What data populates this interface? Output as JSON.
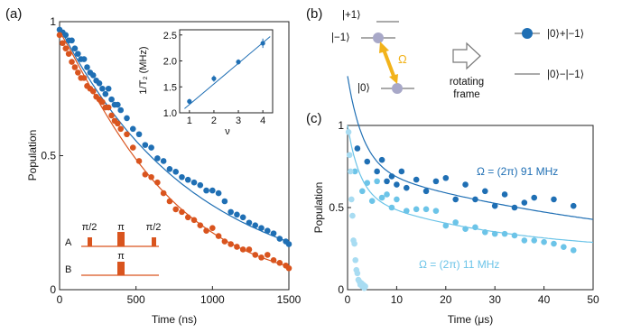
{
  "panels": {
    "a": {
      "label": "(a)",
      "xlabel": "Time (ns)",
      "ylabel": "Population",
      "xticks": [
        "0",
        "500",
        "1000",
        "1500"
      ],
      "yticks": [
        "0",
        "0.5",
        "1"
      ],
      "inset": {
        "xlabel": "ν",
        "ylabel": "1/T₂ (MHz)",
        "xticks": [
          "1",
          "2",
          "3",
          "4"
        ],
        "yticks": [
          "1.0",
          "1.5",
          "2.0",
          "2.5"
        ]
      },
      "sequence": {
        "row_a": "A",
        "row_b": "B",
        "pulse_a1": "π/2",
        "pulse_a2": "π",
        "pulse_a3": "π/2",
        "pulse_b": "π"
      }
    },
    "b": {
      "label": "(b)",
      "level_plus1": "|+1⟩",
      "level_minus1": "|−1⟩",
      "level_zero": "|0⟩",
      "omega": "Ω",
      "arrow_text_1": "rotating",
      "arrow_text_2": "frame",
      "dressed_plus": "|0⟩+|−1⟩",
      "dressed_minus": "|0⟩−|−1⟩"
    },
    "c": {
      "label": "(c)",
      "xlabel": "Time (μs)",
      "ylabel": "Population",
      "xticks": [
        "0",
        "10",
        "20",
        "30",
        "40",
        "50"
      ],
      "yticks": [
        "0",
        "0.5",
        "1"
      ],
      "label_91": "Ω = (2π) 91 MHz",
      "label_11": "Ω = (2π) 11 MHz"
    }
  },
  "colors": {
    "blue": "#1f6fb4",
    "orange": "#d9541e",
    "light_blue": "#6cc4e8",
    "pale_blue": "#a8dcf2",
    "gray": "#a8a8c8"
  },
  "chart_data": [
    {
      "type": "scatter",
      "panel": "a",
      "xlabel": "Time (ns)",
      "ylabel": "Population",
      "xlim": [
        0,
        1500
      ],
      "ylim": [
        0,
        1
      ],
      "series": [
        {
          "color": "blue",
          "x": [
            0,
            20,
            40,
            60,
            80,
            100,
            120,
            140,
            160,
            180,
            200,
            220,
            240,
            260,
            280,
            300,
            320,
            340,
            360,
            380,
            400,
            440,
            480,
            520,
            560,
            600,
            640,
            680,
            720,
            760,
            800,
            840,
            880,
            920,
            960,
            1000,
            1040,
            1080,
            1120,
            1160,
            1200,
            1240,
            1280,
            1320,
            1360,
            1400,
            1440,
            1480,
            1500
          ],
          "y": [
            0.97,
            0.96,
            0.95,
            0.93,
            0.93,
            0.9,
            0.88,
            0.86,
            0.86,
            0.83,
            0.81,
            0.8,
            0.78,
            0.77,
            0.75,
            0.73,
            0.75,
            0.71,
            0.69,
            0.69,
            0.67,
            0.64,
            0.6,
            0.58,
            0.54,
            0.53,
            0.49,
            0.48,
            0.45,
            0.44,
            0.42,
            0.41,
            0.4,
            0.39,
            0.37,
            0.37,
            0.36,
            0.33,
            0.29,
            0.28,
            0.27,
            0.25,
            0.24,
            0.23,
            0.22,
            0.21,
            0.19,
            0.18,
            0.17
          ]
        },
        {
          "color": "orange",
          "x": [
            0,
            20,
            40,
            60,
            80,
            100,
            120,
            140,
            160,
            180,
            200,
            220,
            240,
            260,
            280,
            300,
            320,
            340,
            360,
            380,
            400,
            440,
            480,
            520,
            560,
            600,
            640,
            680,
            720,
            760,
            800,
            840,
            880,
            920,
            960,
            1000,
            1040,
            1080,
            1120,
            1160,
            1200,
            1240,
            1280,
            1320,
            1360,
            1400,
            1440,
            1480,
            1500
          ],
          "y": [
            0.95,
            0.92,
            0.9,
            0.88,
            0.85,
            0.83,
            0.81,
            0.79,
            0.79,
            0.76,
            0.75,
            0.74,
            0.72,
            0.71,
            0.7,
            0.68,
            0.68,
            0.65,
            0.63,
            0.62,
            0.6,
            0.58,
            0.53,
            0.48,
            0.43,
            0.42,
            0.4,
            0.36,
            0.33,
            0.3,
            0.29,
            0.27,
            0.26,
            0.24,
            0.22,
            0.23,
            0.2,
            0.18,
            0.17,
            0.16,
            0.15,
            0.15,
            0.13,
            0.12,
            0.13,
            0.11,
            0.1,
            0.09,
            0.08
          ]
        }
      ]
    },
    {
      "type": "scatter",
      "panel": "a-inset",
      "xlabel": "ν",
      "ylabel": "1/T₂ (MHz)",
      "xlim": [
        0.6,
        4.4
      ],
      "ylim": [
        1.0,
        2.6
      ],
      "x": [
        1,
        2,
        3,
        4
      ],
      "y": [
        1.22,
        1.66,
        1.98,
        2.34
      ],
      "yerr": [
        0.05,
        0.06,
        0.05,
        0.09
      ]
    },
    {
      "type": "scatter",
      "panel": "c",
      "xlabel": "Time (μs)",
      "ylabel": "Population",
      "xlim": [
        0,
        50
      ],
      "ylim": [
        0,
        1
      ],
      "series": [
        {
          "color": "blue",
          "x": [
            2,
            4,
            6,
            7,
            8,
            9,
            10,
            11,
            12,
            14,
            16,
            18,
            20,
            22,
            24,
            26,
            28,
            30,
            32,
            34,
            36,
            38,
            42,
            46
          ],
          "y": [
            0.86,
            0.78,
            0.72,
            0.79,
            0.66,
            0.69,
            0.64,
            0.72,
            0.62,
            0.67,
            0.6,
            0.66,
            0.68,
            0.55,
            0.64,
            0.55,
            0.6,
            0.51,
            0.58,
            0.5,
            0.53,
            0.56,
            0.55,
            0.51
          ]
        },
        {
          "color": "light_blue",
          "x": [
            1.5,
            3,
            4,
            5,
            6,
            7,
            8,
            9,
            10,
            12,
            14,
            16,
            18,
            20,
            22,
            24,
            26,
            28,
            30,
            32,
            34,
            36,
            38,
            40,
            42,
            44,
            46
          ],
          "y": [
            0.72,
            0.6,
            0.65,
            0.54,
            0.66,
            0.56,
            0.58,
            0.5,
            0.55,
            0.48,
            0.49,
            0.49,
            0.48,
            0.39,
            0.41,
            0.37,
            0.38,
            0.35,
            0.34,
            0.34,
            0.33,
            0.3,
            0.3,
            0.29,
            0.28,
            0.26,
            0.24
          ]
        },
        {
          "color": "pale_blue",
          "x": [
            0.2,
            0.4,
            0.6,
            0.8,
            1.0,
            1.2,
            1.4,
            1.6,
            1.8,
            2.0,
            2.2,
            2.4,
            2.6,
            2.8,
            3.0,
            3.2,
            3.4,
            3.6
          ],
          "y": [
            0.96,
            0.82,
            0.72,
            0.55,
            0.45,
            0.3,
            0.28,
            0.18,
            0.12,
            0.1,
            0.06,
            0.05,
            0.03,
            0.04,
            0.02,
            0.03,
            0.01,
            0.02
          ]
        }
      ]
    }
  ]
}
